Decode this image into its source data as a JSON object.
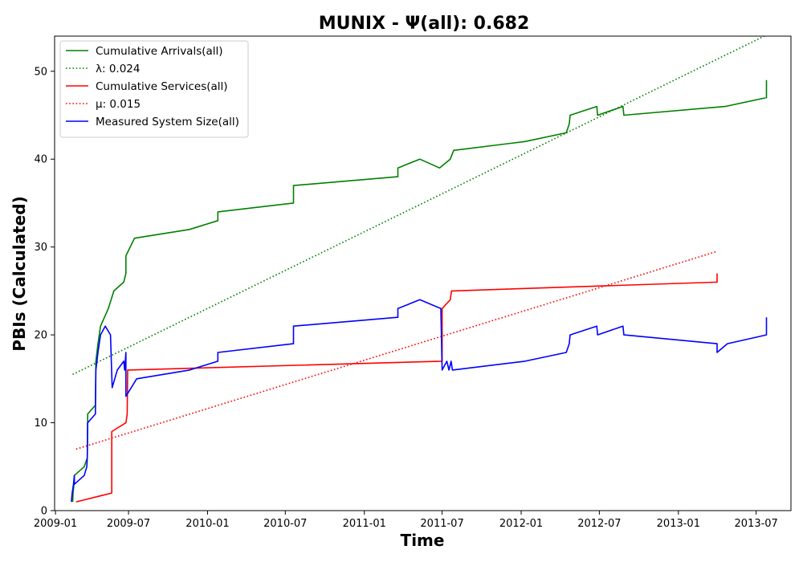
{
  "chart_data": {
    "type": "line",
    "title": "MUNIX -  Ψ(all): 0.682",
    "xlabel": "Time",
    "ylabel": "PBIs (Calculated)",
    "x_type": "date",
    "xlim": [
      "2009-01-10",
      "2013-09-20"
    ],
    "ylim": [
      0,
      54
    ],
    "x_ticks": [
      {
        "date": "2009-07-01",
        "label": "2009-07"
      },
      {
        "date": "2010-01-01",
        "label": "2010-01"
      },
      {
        "date": "2010-07-01",
        "label": "2010-07"
      },
      {
        "date": "2011-01-01",
        "label": "2011-01"
      },
      {
        "date": "2011-07-01",
        "label": "2011-07"
      },
      {
        "date": "2012-01-01",
        "label": "2012-01"
      },
      {
        "date": "2012-07-01",
        "label": "2012-07"
      },
      {
        "date": "2013-01-01",
        "label": "2013-01"
      },
      {
        "date": "2013-07-01",
        "label": "2013-07"
      }
    ],
    "x_tick_extra": {
      "date": "2009-01-12",
      "label": "2009-01"
    },
    "y_ticks": [
      0,
      10,
      20,
      30,
      40,
      50
    ],
    "grid": false,
    "legend_position": "top-left",
    "series": [
      {
        "name": "Cumulative Arrivals(all)",
        "style": "solid",
        "color": "#008000",
        "points": [
          [
            "2009-02-21",
            1
          ],
          [
            "2009-02-22",
            2
          ],
          [
            "2009-02-24",
            3
          ],
          [
            "2009-02-25",
            4
          ],
          [
            "2009-03-20",
            5
          ],
          [
            "2009-03-27",
            6
          ],
          [
            "2009-03-28",
            11
          ],
          [
            "2009-04-15",
            12
          ],
          [
            "2009-04-16",
            17
          ],
          [
            "2009-04-21",
            19
          ],
          [
            "2009-04-27",
            21
          ],
          [
            "2009-05-15",
            23
          ],
          [
            "2009-05-28",
            25
          ],
          [
            "2009-06-20",
            26
          ],
          [
            "2009-06-25",
            27
          ],
          [
            "2009-06-25",
            29
          ],
          [
            "2009-07-15",
            31
          ],
          [
            "2009-11-20",
            32
          ],
          [
            "2010-01-25",
            33
          ],
          [
            "2010-01-25",
            34
          ],
          [
            "2010-07-20",
            35
          ],
          [
            "2010-07-20",
            37
          ],
          [
            "2011-03-20",
            38
          ],
          [
            "2011-03-20",
            39
          ],
          [
            "2011-05-10",
            40
          ],
          [
            "2011-06-25",
            39
          ],
          [
            "2011-07-20",
            40
          ],
          [
            "2011-07-28",
            41
          ],
          [
            "2012-01-10",
            42
          ],
          [
            "2012-04-15",
            43
          ],
          [
            "2012-04-22",
            44
          ],
          [
            "2012-04-24",
            45
          ],
          [
            "2012-06-25",
            46
          ],
          [
            "2012-06-27",
            45
          ],
          [
            "2012-08-25",
            46
          ],
          [
            "2012-08-27",
            45
          ],
          [
            "2013-04-20",
            46
          ],
          [
            "2013-07-25",
            47
          ],
          [
            "2013-07-25",
            49
          ]
        ]
      },
      {
        "name": "λ: 0.024",
        "style": "dotted",
        "color": "#008000",
        "points": [
          [
            "2009-02-21",
            15.5
          ],
          [
            "2013-07-20",
            54
          ]
        ]
      },
      {
        "name": "Cumulative Services(all)",
        "style": "solid",
        "color": "#ff0000",
        "points": [
          [
            "2009-03-01",
            1
          ],
          [
            "2009-05-23",
            2
          ],
          [
            "2009-05-23",
            9
          ],
          [
            "2009-06-25",
            10
          ],
          [
            "2009-06-28",
            11
          ],
          [
            "2009-06-29",
            16
          ],
          [
            "2011-07-01",
            17
          ],
          [
            "2011-07-01",
            23
          ],
          [
            "2011-07-20",
            24
          ],
          [
            "2011-07-23",
            25
          ],
          [
            "2013-04-01",
            26
          ],
          [
            "2013-04-01",
            27
          ]
        ]
      },
      {
        "name": "μ: 0.015",
        "style": "dotted",
        "color": "#ff0000",
        "points": [
          [
            "2009-03-01",
            7
          ],
          [
            "2013-04-01",
            29.5
          ]
        ]
      },
      {
        "name": "Measured System Size(all)",
        "style": "solid",
        "color": "#0000ff",
        "points": [
          [
            "2009-02-18",
            1
          ],
          [
            "2009-02-20",
            2
          ],
          [
            "2009-02-23",
            3
          ],
          [
            "2009-02-25",
            4
          ],
          [
            "2009-02-25",
            3
          ],
          [
            "2009-03-20",
            4
          ],
          [
            "2009-03-26",
            5
          ],
          [
            "2009-03-27",
            6
          ],
          [
            "2009-03-28",
            10
          ],
          [
            "2009-04-15",
            11
          ],
          [
            "2009-04-16",
            16
          ],
          [
            "2009-04-21",
            18
          ],
          [
            "2009-04-27",
            20
          ],
          [
            "2009-05-08",
            21
          ],
          [
            "2009-05-20",
            20
          ],
          [
            "2009-05-24",
            14
          ],
          [
            "2009-06-05",
            16
          ],
          [
            "2009-06-20",
            17
          ],
          [
            "2009-06-22",
            16
          ],
          [
            "2009-06-25",
            18
          ],
          [
            "2009-06-25",
            13
          ],
          [
            "2009-07-20",
            15
          ],
          [
            "2009-11-20",
            16
          ],
          [
            "2010-01-25",
            17
          ],
          [
            "2010-01-25",
            18
          ],
          [
            "2010-07-20",
            19
          ],
          [
            "2010-07-20",
            21
          ],
          [
            "2011-03-20",
            22
          ],
          [
            "2011-03-20",
            23
          ],
          [
            "2011-05-10",
            24
          ],
          [
            "2011-06-28",
            23
          ],
          [
            "2011-07-01",
            16
          ],
          [
            "2011-07-12",
            17
          ],
          [
            "2011-07-17",
            16
          ],
          [
            "2011-07-22",
            17
          ],
          [
            "2011-07-25",
            16
          ],
          [
            "2012-01-10",
            17
          ],
          [
            "2012-04-15",
            18
          ],
          [
            "2012-04-22",
            19
          ],
          [
            "2012-04-24",
            20
          ],
          [
            "2012-06-25",
            21
          ],
          [
            "2012-06-27",
            20
          ],
          [
            "2012-08-25",
            21
          ],
          [
            "2012-08-27",
            20
          ],
          [
            "2013-04-01",
            19
          ],
          [
            "2013-04-01",
            18
          ],
          [
            "2013-04-25",
            19
          ],
          [
            "2013-07-25",
            20
          ],
          [
            "2013-07-25",
            22
          ]
        ]
      }
    ]
  }
}
